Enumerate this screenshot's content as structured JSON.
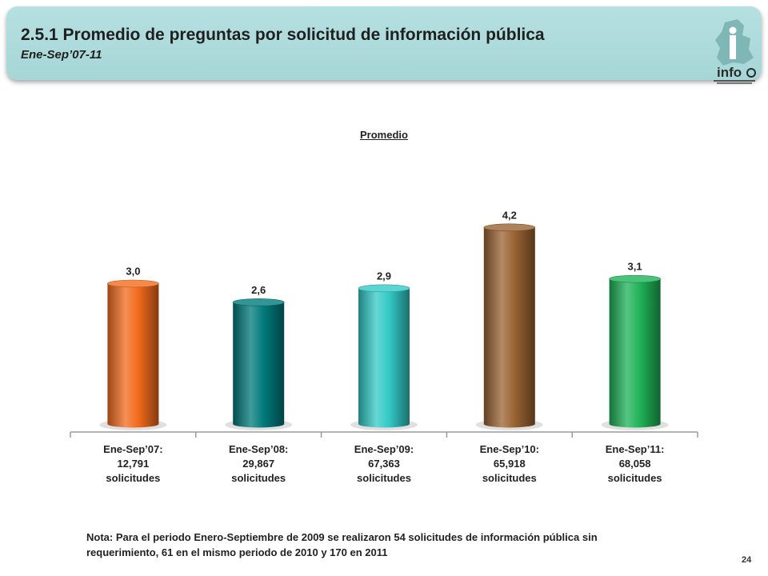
{
  "header": {
    "title": "2.5.1 Promedio de preguntas por solicitud de información pública",
    "subtitle": "Ene-Sep’07-11",
    "logo_text": "info"
  },
  "chart_data": {
    "type": "bar",
    "title": "Promedio",
    "categories": [
      [
        "Ene-Sep’07:",
        "12,791",
        "solicitudes"
      ],
      [
        "Ene-Sep’08:",
        "29,867",
        "solicitudes"
      ],
      [
        "Ene-Sep’09:",
        "67,363",
        "solicitudes"
      ],
      [
        "Ene-Sep’10:",
        "65,918",
        "solicitudes"
      ],
      [
        "Ene-Sep’11:",
        "68,058",
        "solicitudes"
      ]
    ],
    "values": [
      3.0,
      2.6,
      2.9,
      4.2,
      3.1
    ],
    "value_labels": [
      "3,0",
      "2,6",
      "2,9",
      "4,2",
      "3,1"
    ],
    "colors": [
      "#f26b1d",
      "#007a7a",
      "#33c9c6",
      "#9a6332",
      "#1fb257"
    ],
    "ylim": [
      0,
      5
    ],
    "grid": false
  },
  "note": "Nota: Para el periodo Enero-Septiembre de 2009 se realizaron 54 solicitudes de información pública sin requerimiento,  61 en el mismo periodo de 2010 y 170 en 2011",
  "page_number": "24"
}
